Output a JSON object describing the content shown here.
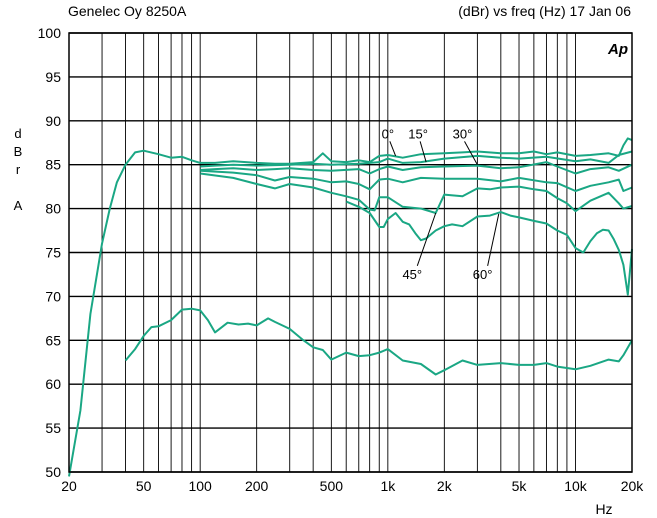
{
  "header": {
    "left": "Genelec Oy 8250A",
    "right": "(dBr) vs freq (Hz) 17 Jan 06",
    "logo_text": "Ap"
  },
  "chart_data": {
    "type": "line",
    "xscale": "log",
    "xlim": [
      20,
      20000
    ],
    "ylim": [
      50,
      100
    ],
    "grid": true,
    "ylabel_chars": [
      "d",
      "B",
      "r",
      "",
      "A"
    ],
    "xlabel": "Hz",
    "yticks": [
      50,
      55,
      60,
      65,
      70,
      75,
      80,
      85,
      90,
      95,
      100
    ],
    "xticks": [
      {
        "value": 20,
        "label": "20"
      },
      {
        "value": 50,
        "label": "50"
      },
      {
        "value": 100,
        "label": "100"
      },
      {
        "value": 200,
        "label": "200"
      },
      {
        "value": 500,
        "label": "500"
      },
      {
        "value": 1000,
        "label": "1k"
      },
      {
        "value": 2000,
        "label": "2k"
      },
      {
        "value": 5000,
        "label": "5k"
      },
      {
        "value": 10000,
        "label": "10k"
      },
      {
        "value": 20000,
        "label": "20k"
      }
    ],
    "line_color": "#1aa784",
    "series": [
      {
        "label": "0°",
        "points": [
          [
            20,
            49.5
          ],
          [
            23,
            57
          ],
          [
            26,
            68
          ],
          [
            30,
            76
          ],
          [
            33,
            80
          ],
          [
            36,
            83
          ],
          [
            40,
            85
          ],
          [
            45,
            86.4
          ],
          [
            50,
            86.6
          ],
          [
            60,
            86.2
          ],
          [
            70,
            85.8
          ],
          [
            80,
            85.9
          ],
          [
            90,
            85.5
          ],
          [
            100,
            85.2
          ],
          [
            120,
            85.2
          ],
          [
            150,
            85.4
          ],
          [
            200,
            85.2
          ],
          [
            250,
            85.1
          ],
          [
            300,
            85.1
          ],
          [
            400,
            85.3
          ],
          [
            450,
            86.3
          ],
          [
            500,
            85.4
          ],
          [
            600,
            85.3
          ],
          [
            700,
            85.5
          ],
          [
            800,
            85.3
          ],
          [
            900,
            86
          ],
          [
            1000,
            86.1
          ],
          [
            1200,
            85.8
          ],
          [
            1500,
            86.2
          ],
          [
            2000,
            86.3
          ],
          [
            2500,
            86.4
          ],
          [
            3000,
            86.5
          ],
          [
            4000,
            86.3
          ],
          [
            5000,
            86.3
          ],
          [
            6000,
            86.5
          ],
          [
            7000,
            86.2
          ],
          [
            8000,
            86.4
          ],
          [
            10000,
            86
          ],
          [
            12000,
            86.1
          ],
          [
            15000,
            86.3
          ],
          [
            17000,
            86
          ],
          [
            18000,
            87.2
          ],
          [
            19000,
            88
          ],
          [
            20000,
            87.8
          ]
        ]
      },
      {
        "label": "15°",
        "points": [
          [
            100,
            84.8
          ],
          [
            120,
            84.9
          ],
          [
            150,
            85.0
          ],
          [
            200,
            84.9
          ],
          [
            300,
            85.0
          ],
          [
            400,
            85.1
          ],
          [
            500,
            85.0
          ],
          [
            700,
            85.1
          ],
          [
            900,
            85.3
          ],
          [
            1000,
            85.7
          ],
          [
            1200,
            85.2
          ],
          [
            1500,
            85.3
          ],
          [
            2000,
            85.7
          ],
          [
            3000,
            86.0
          ],
          [
            4000,
            85.8
          ],
          [
            5000,
            85.7
          ],
          [
            7000,
            85.9
          ],
          [
            10000,
            85.4
          ],
          [
            12000,
            85.6
          ],
          [
            15000,
            85.2
          ],
          [
            17000,
            86.1
          ],
          [
            20000,
            86.5
          ]
        ]
      },
      {
        "label": "30°",
        "points": [
          [
            100,
            84.4
          ],
          [
            120,
            84.5
          ],
          [
            150,
            84.6
          ],
          [
            200,
            84.4
          ],
          [
            250,
            84.5
          ],
          [
            300,
            84.6
          ],
          [
            400,
            84.4
          ],
          [
            500,
            84.3
          ],
          [
            700,
            84.5
          ],
          [
            800,
            84.0
          ],
          [
            900,
            84.5
          ],
          [
            1000,
            84.8
          ],
          [
            1200,
            84.4
          ],
          [
            1500,
            84.7
          ],
          [
            2000,
            84.8
          ],
          [
            3000,
            84.9
          ],
          [
            4000,
            84.6
          ],
          [
            5000,
            84.7
          ],
          [
            7000,
            85.3
          ],
          [
            8000,
            84.8
          ],
          [
            10000,
            84.0
          ],
          [
            12000,
            84.5
          ],
          [
            15000,
            84.7
          ],
          [
            17000,
            84.3
          ],
          [
            20000,
            85.0
          ]
        ]
      },
      {
        "label": "",
        "points": [
          [
            100,
            84.3
          ],
          [
            150,
            84.1
          ],
          [
            200,
            83.8
          ],
          [
            250,
            83.2
          ],
          [
            300,
            83.6
          ],
          [
            400,
            83.4
          ],
          [
            500,
            83.0
          ],
          [
            600,
            83.1
          ],
          [
            700,
            82.8
          ],
          [
            800,
            82.2
          ],
          [
            900,
            83.3
          ],
          [
            1000,
            83.4
          ],
          [
            1200,
            83.0
          ],
          [
            1500,
            83.5
          ],
          [
            2000,
            83.4
          ],
          [
            3000,
            83.4
          ],
          [
            4000,
            83.1
          ],
          [
            5000,
            83.5
          ],
          [
            7000,
            83.0
          ],
          [
            8000,
            82.9
          ],
          [
            10000,
            82.0
          ],
          [
            12000,
            82.6
          ],
          [
            15000,
            83.0
          ],
          [
            17000,
            83.3
          ],
          [
            18000,
            82.0
          ],
          [
            20000,
            82.4
          ]
        ]
      },
      {
        "label": "45°",
        "points": [
          [
            100,
            84.0
          ],
          [
            150,
            83.5
          ],
          [
            200,
            82.8
          ],
          [
            250,
            82.3
          ],
          [
            300,
            82.8
          ],
          [
            400,
            82.4
          ],
          [
            500,
            81.8
          ],
          [
            600,
            81.4
          ],
          [
            700,
            81.0
          ],
          [
            800,
            79.9
          ],
          [
            850,
            79.8
          ],
          [
            900,
            81.3
          ],
          [
            1000,
            81.3
          ],
          [
            1200,
            80.2
          ],
          [
            1500,
            80.0
          ],
          [
            1800,
            79.5
          ],
          [
            2000,
            81.6
          ],
          [
            2500,
            81.4
          ],
          [
            3000,
            82.3
          ],
          [
            3500,
            82.2
          ],
          [
            4000,
            82.4
          ],
          [
            5000,
            82.5
          ],
          [
            6000,
            82.2
          ],
          [
            7000,
            82.0
          ],
          [
            8000,
            81.2
          ],
          [
            9000,
            80.6
          ],
          [
            10000,
            79.7
          ],
          [
            12000,
            80.9
          ],
          [
            15000,
            81.8
          ],
          [
            17000,
            80.6
          ],
          [
            18000,
            80.0
          ],
          [
            20000,
            80.3
          ]
        ]
      },
      {
        "label": "60°",
        "points": [
          [
            600,
            80.8
          ],
          [
            700,
            80.2
          ],
          [
            800,
            79.5
          ],
          [
            900,
            77.9
          ],
          [
            950,
            77.9
          ],
          [
            1000,
            78.8
          ],
          [
            1100,
            79.5
          ],
          [
            1200,
            78.5
          ],
          [
            1300,
            78.2
          ],
          [
            1400,
            77.2
          ],
          [
            1500,
            76.4
          ],
          [
            1600,
            76.6
          ],
          [
            1800,
            77.5
          ],
          [
            2000,
            78.0
          ],
          [
            2200,
            78.2
          ],
          [
            2500,
            78.0
          ],
          [
            3000,
            79.1
          ],
          [
            3500,
            79.2
          ],
          [
            4000,
            79.6
          ],
          [
            4500,
            79.2
          ],
          [
            5000,
            79.0
          ],
          [
            6000,
            78.6
          ],
          [
            7000,
            78.3
          ],
          [
            8000,
            77.5
          ],
          [
            9000,
            77.0
          ],
          [
            10000,
            75.5
          ],
          [
            11000,
            75.0
          ],
          [
            12000,
            76.3
          ],
          [
            13000,
            77.2
          ],
          [
            14000,
            77.6
          ],
          [
            15000,
            77.5
          ],
          [
            16000,
            76.5
          ],
          [
            17000,
            75.3
          ],
          [
            18000,
            73.6
          ],
          [
            19000,
            70.2
          ],
          [
            20000,
            75.4
          ]
        ]
      },
      {
        "label": "",
        "points": [
          [
            40,
            62.7
          ],
          [
            45,
            64.0
          ],
          [
            50,
            65.5
          ],
          [
            55,
            66.5
          ],
          [
            60,
            66.6
          ],
          [
            70,
            67.3
          ],
          [
            80,
            68.5
          ],
          [
            90,
            68.6
          ],
          [
            100,
            68.4
          ],
          [
            110,
            67.3
          ],
          [
            120,
            65.9
          ],
          [
            140,
            67.0
          ],
          [
            160,
            66.8
          ],
          [
            180,
            66.9
          ],
          [
            200,
            66.7
          ],
          [
            230,
            67.5
          ],
          [
            250,
            67.1
          ],
          [
            300,
            66.3
          ],
          [
            350,
            65.1
          ],
          [
            400,
            64.2
          ],
          [
            450,
            63.9
          ],
          [
            500,
            62.8
          ],
          [
            600,
            63.6
          ],
          [
            700,
            63.2
          ],
          [
            800,
            63.3
          ],
          [
            900,
            63.6
          ],
          [
            1000,
            64.0
          ],
          [
            1200,
            62.7
          ],
          [
            1500,
            62.3
          ],
          [
            1800,
            61.1
          ],
          [
            2000,
            61.6
          ],
          [
            2500,
            62.7
          ],
          [
            3000,
            62.2
          ],
          [
            4000,
            62.4
          ],
          [
            5000,
            62.2
          ],
          [
            6000,
            62.2
          ],
          [
            7000,
            62.4
          ],
          [
            8000,
            62.0
          ],
          [
            10000,
            61.7
          ],
          [
            12000,
            62.1
          ],
          [
            15000,
            62.8
          ],
          [
            17000,
            62.6
          ],
          [
            18000,
            63.3
          ],
          [
            20000,
            65.0
          ]
        ]
      }
    ],
    "annotations": [
      {
        "text": "0°",
        "at": [
          1000,
          88.0
        ]
      },
      {
        "text": "15°",
        "at": [
          1450,
          88.0
        ]
      },
      {
        "text": "30°",
        "at": [
          2500,
          88.0
        ]
      },
      {
        "text": "45°",
        "at": [
          1350,
          72.0
        ]
      },
      {
        "text": "60°",
        "at": [
          3200,
          72.0
        ]
      }
    ]
  }
}
